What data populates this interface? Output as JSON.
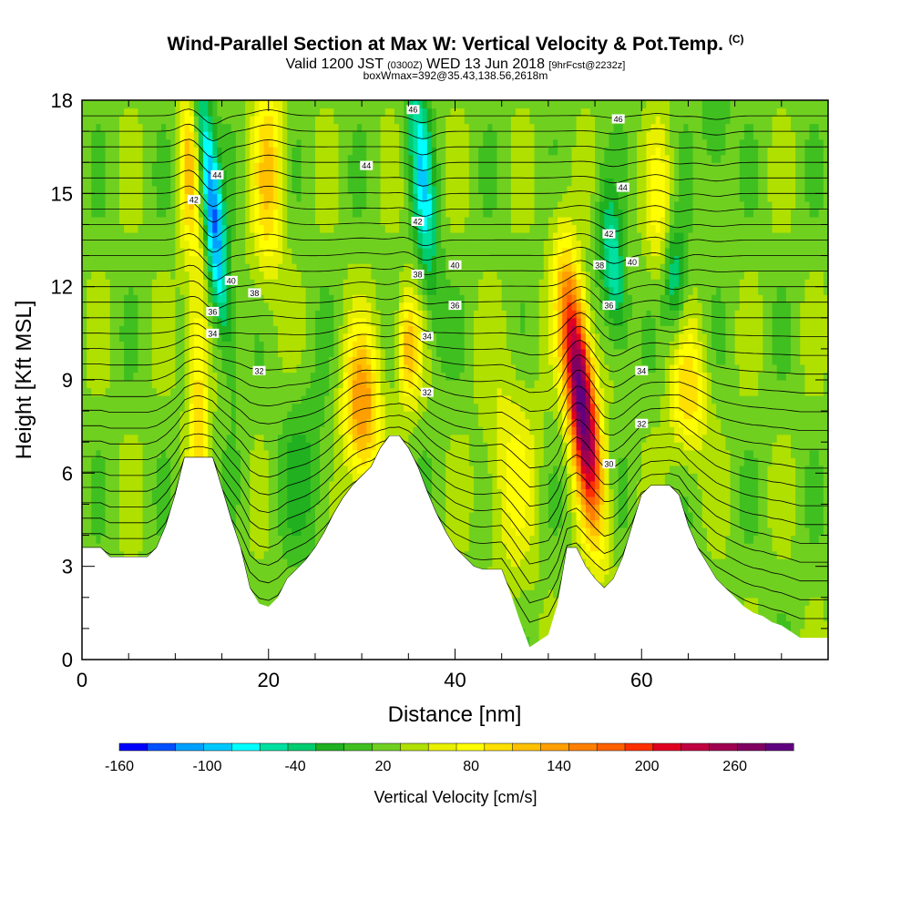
{
  "header": {
    "title_main": "Wind-Parallel Section at Max W: Vertical Velocity & Pot.Temp.",
    "title_mark": "(C)",
    "valid_a": "Valid 1200 JST",
    "valid_b": "(0300Z)",
    "valid_c": "WED 13 Jun 2018",
    "valid_d": "[9hrFcst@2232z]",
    "box_info": "boxWmax=392@35.43,138.56,2618m"
  },
  "chart_data": {
    "type": "heatmap",
    "xlabel": "Distance [nm]",
    "ylabel": "Height [Kft MSL]",
    "xlim": [
      0,
      80
    ],
    "ylim": [
      0,
      18
    ],
    "x_ticks": [
      0,
      20,
      40,
      60
    ],
    "y_ticks": [
      0,
      3,
      6,
      9,
      12,
      15,
      18
    ],
    "colorbar": {
      "label": "Vertical Velocity [cm/s]",
      "tick_labels": [
        "-160",
        "-100",
        "-40",
        "20",
        "80",
        "140",
        "200",
        "260"
      ],
      "tick_values": [
        -160,
        -100,
        -40,
        20,
        80,
        140,
        200,
        260
      ],
      "colors": [
        "#0000ff",
        "#0050ff",
        "#00a0ff",
        "#00c8ff",
        "#00ffff",
        "#00e0a0",
        "#00cc70",
        "#20b020",
        "#40c020",
        "#70d020",
        "#b0e000",
        "#e8f000",
        "#ffff00",
        "#ffe000",
        "#ffc000",
        "#ffa000",
        "#ff8000",
        "#ff6000",
        "#ff3000",
        "#e00020",
        "#c00040",
        "#a00050",
        "#800060",
        "#600080"
      ],
      "min": -160,
      "max": 300
    },
    "terrain": [
      [
        0,
        3.6
      ],
      [
        2,
        3.6
      ],
      [
        3,
        3.3
      ],
      [
        7,
        3.3
      ],
      [
        8,
        3.6
      ],
      [
        9,
        4.3
      ],
      [
        10,
        5.3
      ],
      [
        11,
        6.5
      ],
      [
        14,
        6.5
      ],
      [
        15,
        5.5
      ],
      [
        16,
        4.5
      ],
      [
        17,
        3.6
      ],
      [
        18,
        2.3
      ],
      [
        19,
        1.8
      ],
      [
        20,
        1.7
      ],
      [
        21,
        2.0
      ],
      [
        22,
        2.6
      ],
      [
        23,
        2.9
      ],
      [
        24,
        3.2
      ],
      [
        25,
        3.6
      ],
      [
        26,
        4.1
      ],
      [
        27,
        4.7
      ],
      [
        28,
        5.2
      ],
      [
        29,
        5.6
      ],
      [
        30,
        5.9
      ],
      [
        31,
        6.2
      ],
      [
        32,
        6.8
      ],
      [
        33,
        7.2
      ],
      [
        34,
        7.2
      ],
      [
        35,
        6.8
      ],
      [
        36,
        6.2
      ],
      [
        37,
        5.4
      ],
      [
        38,
        4.7
      ],
      [
        39,
        4.1
      ],
      [
        40,
        3.6
      ],
      [
        41,
        3.3
      ],
      [
        42,
        3.0
      ],
      [
        43,
        2.9
      ],
      [
        44,
        2.9
      ],
      [
        45,
        2.9
      ],
      [
        46,
        2.1
      ],
      [
        47,
        1.2
      ],
      [
        48,
        0.4
      ],
      [
        50,
        0.8
      ],
      [
        51,
        1.8
      ],
      [
        52,
        3.6
      ],
      [
        53,
        3.6
      ],
      [
        54,
        3.0
      ],
      [
        55,
        2.6
      ],
      [
        56,
        2.3
      ],
      [
        57,
        2.6
      ],
      [
        58,
        3.3
      ],
      [
        59,
        4.3
      ],
      [
        60,
        5.3
      ],
      [
        61,
        5.6
      ],
      [
        63,
        5.6
      ],
      [
        64,
        5.3
      ],
      [
        65,
        4.3
      ],
      [
        66,
        3.6
      ],
      [
        67,
        3.1
      ],
      [
        68,
        2.6
      ],
      [
        69,
        2.3
      ],
      [
        70,
        2.0
      ],
      [
        71,
        1.7
      ],
      [
        72,
        1.5
      ],
      [
        73,
        1.4
      ],
      [
        74,
        1.2
      ],
      [
        75,
        1.1
      ],
      [
        77,
        0.7
      ],
      [
        80,
        0.7
      ]
    ],
    "w_field": [
      {
        "x": 14,
        "y": 14.5,
        "sx": 0.8,
        "sy": 3.0,
        "amp": -150,
        "tilt": -0.35
      },
      {
        "x": 12.5,
        "y": 9.0,
        "sx": 0.8,
        "sy": 3.0,
        "amp": 80,
        "tilt": 0.0
      },
      {
        "x": 11.5,
        "y": 16.0,
        "sx": 0.8,
        "sy": 2.0,
        "amp": 85,
        "tilt": 0.0
      },
      {
        "x": 20,
        "y": 15.5,
        "sx": 1.2,
        "sy": 2.5,
        "amp": 80,
        "tilt": 0.0
      },
      {
        "x": 30,
        "y": 8.0,
        "sx": 1.4,
        "sy": 1.8,
        "amp": 120,
        "tilt": 0.0
      },
      {
        "x": 35,
        "y": 10.0,
        "sx": 0.9,
        "sy": 1.3,
        "amp": 95,
        "tilt": 0.0
      },
      {
        "x": 36.5,
        "y": 15.5,
        "sx": 0.9,
        "sy": 3.0,
        "amp": -95,
        "tilt": -0.25
      },
      {
        "x": 53.5,
        "y": 8.5,
        "sx": 1.1,
        "sy": 2.8,
        "amp": 280,
        "tilt": -0.35
      },
      {
        "x": 57,
        "y": 12.5,
        "sx": 0.9,
        "sy": 1.8,
        "amp": -90,
        "tilt": -0.3
      },
      {
        "x": 63.5,
        "y": 12.3,
        "sx": 0.9,
        "sy": 1.3,
        "amp": -75,
        "tilt": 0.0
      },
      {
        "x": 65,
        "y": 8.5,
        "sx": 1.4,
        "sy": 1.5,
        "amp": 75,
        "tilt": 0.0
      },
      {
        "x": 62,
        "y": 14.5,
        "sx": 1.0,
        "sy": 2.0,
        "amp": 50,
        "tilt": 0.0
      },
      {
        "x": 68,
        "y": 17,
        "sx": 1.0,
        "sy": 1.5,
        "amp": -40,
        "tilt": 0.0
      },
      {
        "x": 24,
        "y": 6.0,
        "sx": 2.0,
        "sy": 2.0,
        "amp": -35,
        "tilt": 0.0
      },
      {
        "x": 46,
        "y": 6.0,
        "sx": 2.0,
        "sy": 2.5,
        "amp": 45,
        "tilt": 0.0
      }
    ],
    "theta_labels": [
      {
        "x": 35.5,
        "y": 17.7,
        "text": "46"
      },
      {
        "x": 57.5,
        "y": 17.4,
        "text": "46"
      },
      {
        "x": 14.5,
        "y": 15.6,
        "text": "44"
      },
      {
        "x": 30.5,
        "y": 15.9,
        "text": "44"
      },
      {
        "x": 58,
        "y": 15.2,
        "text": "44"
      },
      {
        "x": 12,
        "y": 14.8,
        "text": "42"
      },
      {
        "x": 36,
        "y": 14.1,
        "text": "42"
      },
      {
        "x": 56.5,
        "y": 13.7,
        "text": "42"
      },
      {
        "x": 16,
        "y": 12.2,
        "text": "40"
      },
      {
        "x": 40,
        "y": 12.7,
        "text": "40"
      },
      {
        "x": 59,
        "y": 12.8,
        "text": "40"
      },
      {
        "x": 18.5,
        "y": 11.8,
        "text": "38"
      },
      {
        "x": 36,
        "y": 12.4,
        "text": "38"
      },
      {
        "x": 55.5,
        "y": 12.7,
        "text": "38"
      },
      {
        "x": 14,
        "y": 11.2,
        "text": "36"
      },
      {
        "x": 40,
        "y": 11.4,
        "text": "36"
      },
      {
        "x": 56.5,
        "y": 11.4,
        "text": "36"
      },
      {
        "x": 14,
        "y": 10.5,
        "text": "34"
      },
      {
        "x": 37,
        "y": 10.4,
        "text": "34"
      },
      {
        "x": 60,
        "y": 9.3,
        "text": "34"
      },
      {
        "x": 19,
        "y": 9.3,
        "text": "32"
      },
      {
        "x": 37,
        "y": 8.6,
        "text": "32"
      },
      {
        "x": 60,
        "y": 7.6,
        "text": "32"
      },
      {
        "x": 56.5,
        "y": 6.3,
        "text": "30"
      }
    ]
  }
}
